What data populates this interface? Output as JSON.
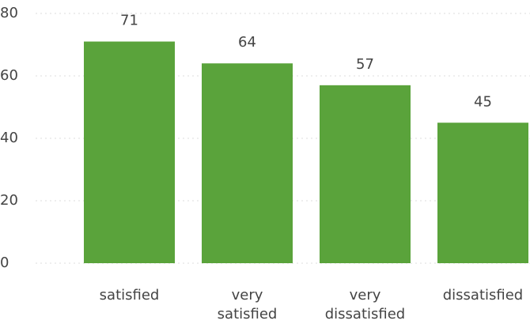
{
  "chart_data": {
    "type": "bar",
    "categories": [
      "satisfied",
      "very satisfied",
      "very dissatisfied",
      "dissatisfied"
    ],
    "values": [
      71,
      64,
      57,
      45
    ],
    "color": "#5aa33b",
    "ylim": [
      0,
      80
    ],
    "yticks": [
      0,
      20,
      40,
      60,
      80
    ],
    "grid": true
  }
}
